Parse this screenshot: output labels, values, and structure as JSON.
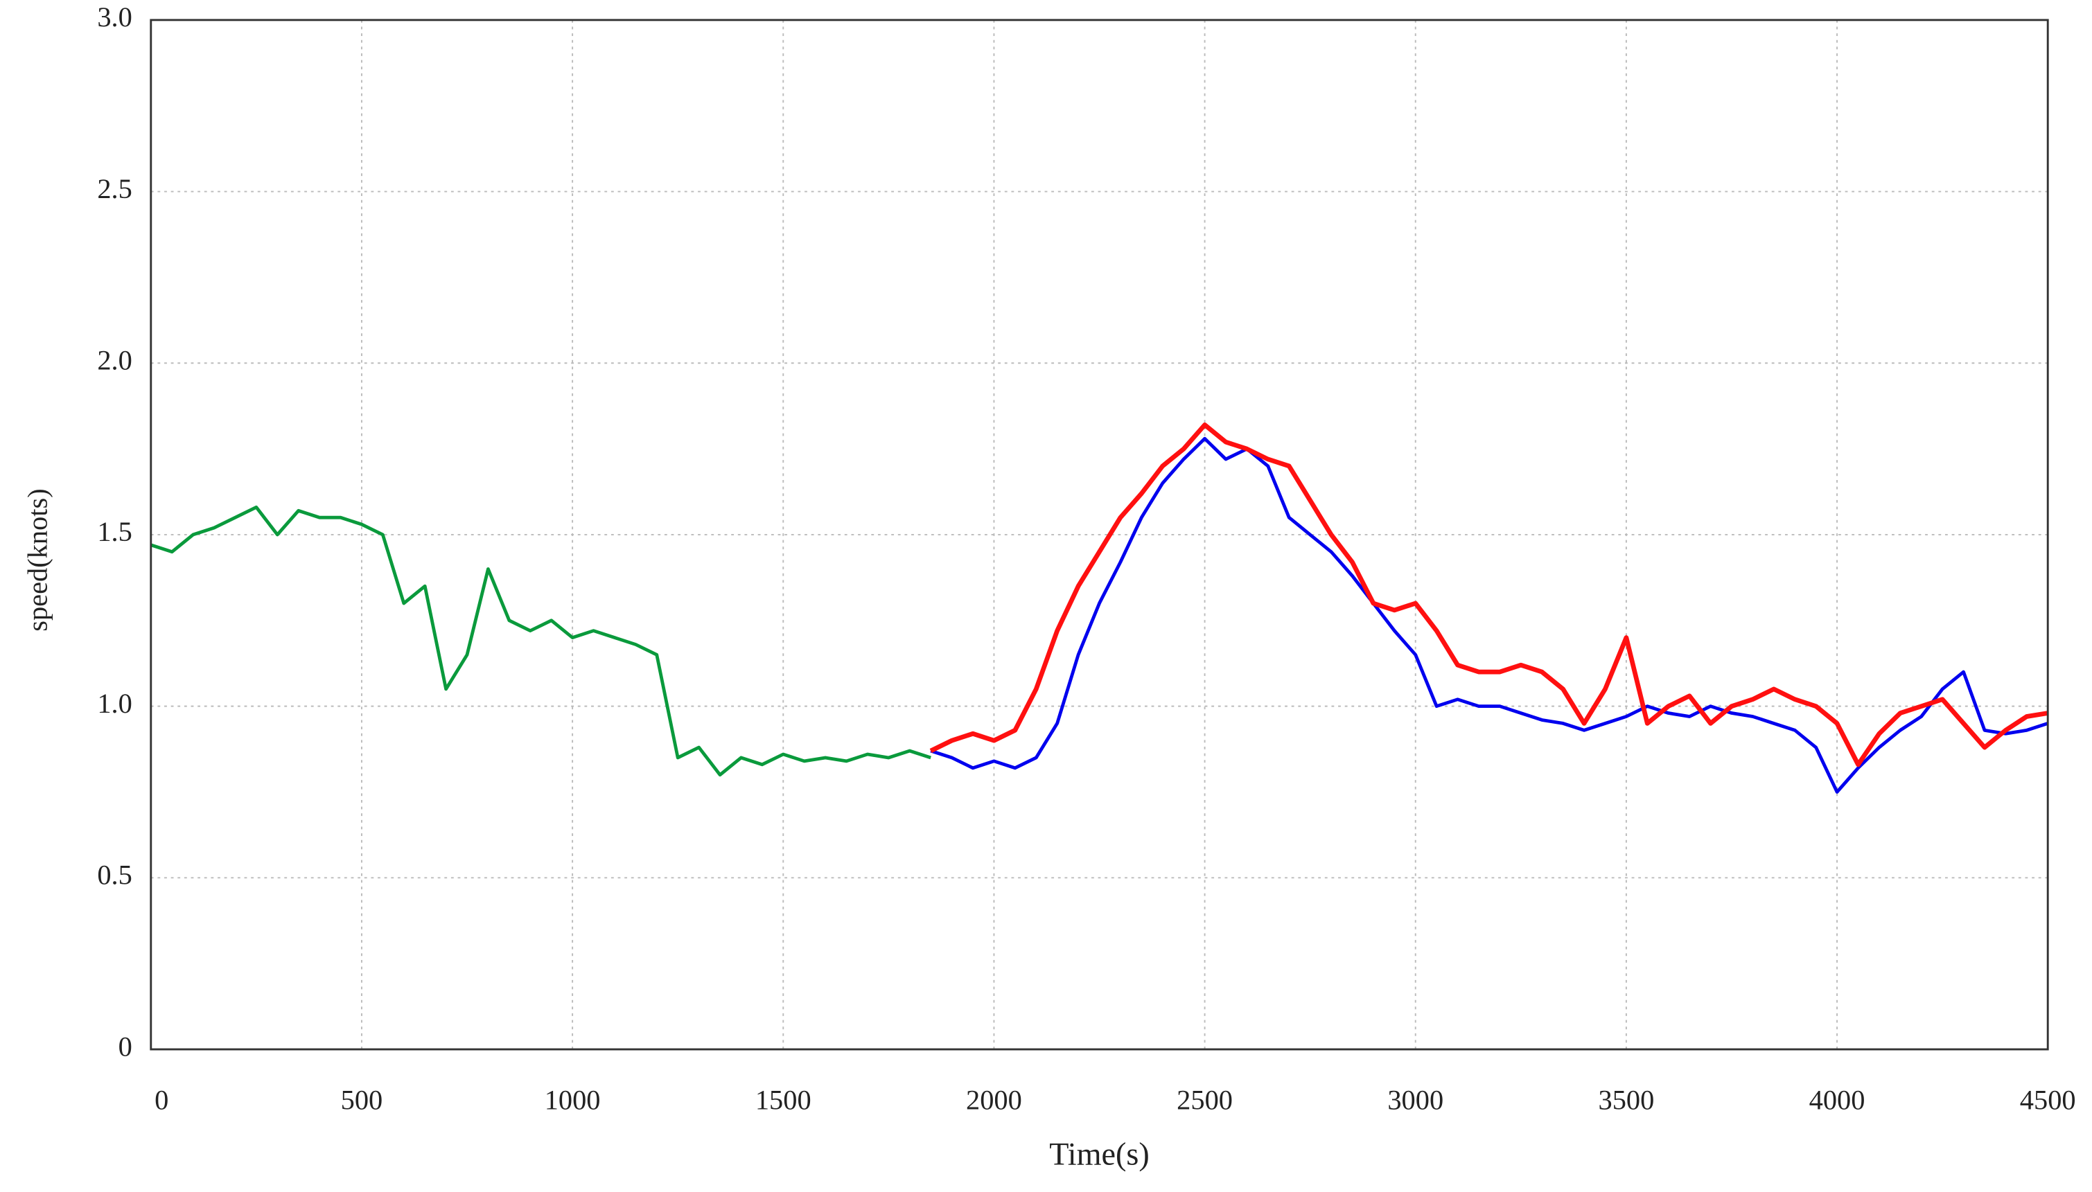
{
  "chart_data": {
    "type": "line",
    "x_label": "Time(s)",
    "y_label": "speed(knots)",
    "xlim": [
      0,
      4500
    ],
    "xticks": [
      0,
      500,
      1000,
      1500,
      2000,
      2500,
      3000,
      3500,
      4000,
      4500
    ],
    "ylim": [
      0,
      3
    ],
    "yticks": [
      0,
      0.5,
      {
        "value": 1,
        "label": "1.0"
      },
      1.5,
      {
        "value": 2,
        "label": "2.0"
      },
      2.5,
      {
        "value": 3,
        "label": "3.0"
      }
    ],
    "grid": true,
    "series": [
      {
        "color": "#0a9a3c",
        "x": [
          0,
          50,
          100,
          150,
          200,
          250,
          300,
          350,
          400,
          450,
          500,
          550,
          600,
          650,
          700,
          750,
          800,
          850,
          900,
          950,
          1000,
          1050,
          1100,
          1150,
          1200,
          1250,
          1300,
          1350,
          1400,
          1450,
          1500,
          1550,
          1600,
          1650,
          1700,
          1750,
          1800,
          1850
        ],
        "values": [
          1.47,
          1.45,
          1.5,
          1.52,
          1.55,
          1.58,
          1.5,
          1.57,
          1.55,
          1.55,
          1.53,
          1.5,
          1.3,
          1.35,
          1.05,
          1.15,
          1.4,
          1.25,
          1.22,
          1.25,
          1.2,
          1.22,
          1.2,
          1.18,
          1.15,
          0.85,
          0.88,
          0.8,
          0.85,
          0.83,
          0.86,
          0.84,
          0.85,
          0.84,
          0.86,
          0.85,
          0.87,
          0.85
        ]
      },
      {
        "color": "#0000ee",
        "x": [
          1850,
          1900,
          1950,
          2000,
          2050,
          2100,
          2150,
          2200,
          2250,
          2300,
          2350,
          2400,
          2450,
          2500,
          2550,
          2600,
          2650,
          2700,
          2750,
          2800,
          2850,
          2900,
          2950,
          3000,
          3050,
          3100,
          3150,
          3200,
          3250,
          3300,
          3350,
          3400,
          3450,
          3500,
          3550,
          3600,
          3650,
          3700,
          3750,
          3800,
          3850,
          3900,
          3950,
          4000,
          4050,
          4100,
          4150,
          4200,
          4250,
          4300,
          4350,
          4400,
          4450,
          4500
        ],
        "values": [
          0.87,
          0.85,
          0.82,
          0.84,
          0.82,
          0.85,
          0.95,
          1.15,
          1.3,
          1.42,
          1.55,
          1.65,
          1.72,
          1.78,
          1.72,
          1.75,
          1.7,
          1.55,
          1.5,
          1.45,
          1.38,
          1.3,
          1.22,
          1.15,
          1.0,
          1.02,
          1.0,
          1.0,
          0.98,
          0.96,
          0.95,
          0.93,
          0.95,
          0.97,
          1.0,
          0.98,
          0.97,
          1.0,
          0.98,
          0.97,
          0.95,
          0.93,
          0.88,
          0.75,
          0.82,
          0.88,
          0.93,
          0.97,
          1.05,
          1.1,
          0.93,
          0.92,
          0.93,
          0.95
        ]
      },
      {
        "color": "#ff1010",
        "x": [
          1850,
          1900,
          1950,
          2000,
          2050,
          2100,
          2150,
          2200,
          2250,
          2300,
          2350,
          2400,
          2450,
          2500,
          2550,
          2600,
          2650,
          2700,
          2750,
          2800,
          2850,
          2900,
          2950,
          3000,
          3050,
          3100,
          3150,
          3200,
          3250,
          3300,
          3350,
          3400,
          3450,
          3500,
          3550,
          3600,
          3650,
          3700,
          3750,
          3800,
          3850,
          3900,
          3950,
          4000,
          4050,
          4100,
          4150,
          4200,
          4250,
          4300,
          4350,
          4400,
          4450,
          4500
        ],
        "values": [
          0.87,
          0.9,
          0.92,
          0.9,
          0.93,
          1.05,
          1.22,
          1.35,
          1.45,
          1.55,
          1.62,
          1.7,
          1.75,
          1.82,
          1.77,
          1.75,
          1.72,
          1.7,
          1.6,
          1.5,
          1.42,
          1.3,
          1.28,
          1.3,
          1.22,
          1.12,
          1.1,
          1.1,
          1.12,
          1.1,
          1.05,
          0.95,
          1.05,
          1.2,
          0.95,
          1.0,
          1.03,
          0.95,
          1.0,
          1.02,
          1.05,
          1.02,
          1.0,
          0.95,
          0.83,
          0.92,
          0.98,
          1.0,
          1.02,
          0.95,
          0.88,
          0.93,
          0.97,
          0.98
        ]
      }
    ]
  }
}
